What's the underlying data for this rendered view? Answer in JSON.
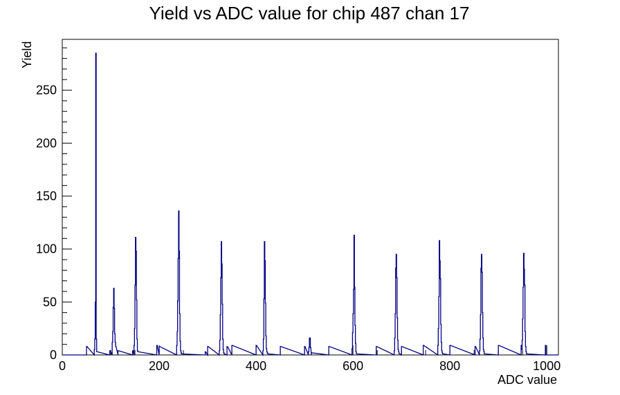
{
  "chart_data": {
    "type": "bar",
    "title": "Yield vs ADC value for chip 487 chan 17",
    "xlabel": "ADC value",
    "ylabel": "Yield",
    "xlim": [
      0,
      1024
    ],
    "ylim": [
      0,
      298
    ],
    "x_ticks": [
      0,
      200,
      400,
      600,
      800,
      1000
    ],
    "y_ticks": [
      0,
      50,
      100,
      150,
      200,
      250
    ],
    "grid": false,
    "legend": "none",
    "line_color": "#000080",
    "series": [
      {
        "x": [
          50,
          66,
          67,
          68,
          69,
          70,
          71,
          98,
          103,
          104,
          105,
          106,
          107,
          108,
          109,
          110,
          115,
          145,
          148,
          149,
          150,
          151,
          152,
          153,
          154,
          155,
          156,
          195,
          200,
          236,
          237,
          238,
          239,
          240,
          241,
          242,
          243,
          244,
          245,
          246,
          295,
          300,
          324,
          325,
          326,
          327,
          328,
          329,
          330,
          331,
          332,
          333,
          334,
          340,
          350,
          400,
          414,
          415,
          416,
          417,
          418,
          419,
          420,
          421,
          422,
          423,
          424,
          450,
          500,
          508,
          509,
          510,
          511,
          512,
          514,
          550,
          598,
          599,
          600,
          601,
          602,
          603,
          604,
          605,
          606,
          607,
          648,
          685,
          686,
          687,
          688,
          689,
          690,
          691,
          692,
          693,
          694,
          695,
          696,
          700,
          745,
          775,
          776,
          777,
          778,
          779,
          780,
          781,
          782,
          783,
          784,
          785,
          786,
          800,
          852,
          861,
          862,
          863,
          864,
          865,
          866,
          867,
          868,
          869,
          870,
          871,
          872,
          900,
          947,
          948,
          949,
          950,
          951,
          952,
          953,
          954,
          955,
          956,
          957,
          958,
          959,
          997
        ],
        "values": [
          8,
          5,
          15,
          50,
          285,
          15,
          3,
          4,
          12,
          22,
          45,
          63,
          44,
          20,
          12,
          8,
          4,
          4,
          9,
          25,
          66,
          111,
          98,
          52,
          15,
          4,
          3,
          9,
          8,
          9,
          22,
          51,
          91,
          136,
          98,
          39,
          13,
          4,
          2,
          1,
          3,
          8,
          4,
          14,
          38,
          73,
          107,
          86,
          48,
          15,
          5,
          2,
          1,
          8,
          9,
          9,
          4,
          15,
          53,
          107,
          89,
          49,
          18,
          6,
          3,
          2,
          1,
          8,
          8,
          3,
          7,
          16,
          16,
          7,
          2,
          8,
          6,
          21,
          39,
          62,
          113,
          64,
          28,
          11,
          3,
          1,
          8,
          4,
          16,
          39,
          82,
          95,
          73,
          35,
          14,
          5,
          3,
          1,
          1,
          8,
          9,
          9,
          25,
          55,
          108,
          89,
          72,
          29,
          12,
          4,
          2,
          1,
          1,
          9,
          8,
          4,
          15,
          38,
          82,
          95,
          78,
          40,
          16,
          5,
          3,
          1,
          1,
          9,
          9,
          5,
          14,
          34,
          64,
          96,
          81,
          66,
          22,
          8,
          3,
          1,
          1,
          9
        ]
      }
    ]
  }
}
